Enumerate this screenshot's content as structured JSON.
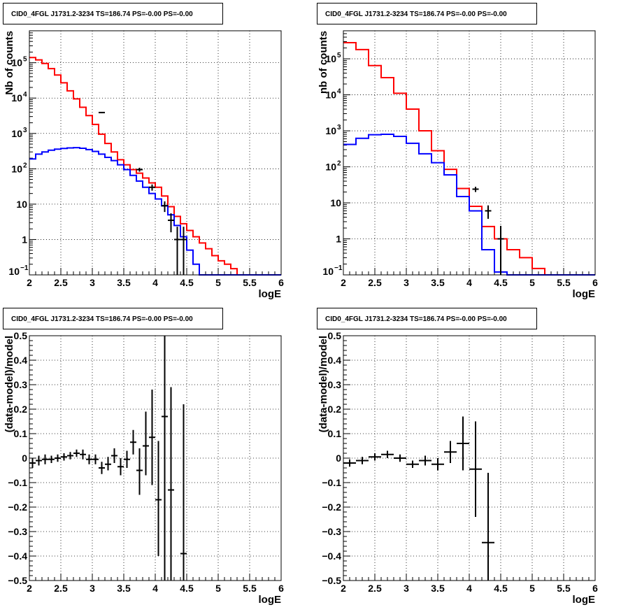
{
  "chart_data": [
    {
      "id": "top-left",
      "type": "step-histogram",
      "title": "CID0_4FGL J1731.2-3234 TS=186.74 PS=-0.00 PS=-0.00",
      "xlabel": "logE",
      "ylabel": "Nb of counts",
      "xlim": [
        2,
        6
      ],
      "ylim": [
        0.1,
        800000
      ],
      "yscale": "log",
      "grid": true,
      "x_ticks": [
        "2",
        "2.5",
        "3",
        "3.5",
        "4",
        "4.5",
        "5",
        "5.5",
        "6"
      ],
      "y_ticks": [
        {
          "value": 0.1,
          "label": "10",
          "exp": "−1"
        },
        {
          "value": 1,
          "label": "1",
          "exp": ""
        },
        {
          "value": 10,
          "label": "10",
          "exp": ""
        },
        {
          "value": 100,
          "label": "10",
          "exp": "2"
        },
        {
          "value": 1000,
          "label": "10",
          "exp": "3"
        },
        {
          "value": 10000,
          "label": "10",
          "exp": "4"
        },
        {
          "value": 100000,
          "label": "10",
          "exp": "5"
        }
      ],
      "bin_edges": [
        2.0,
        2.1,
        2.2,
        2.3,
        2.4,
        2.5,
        2.6,
        2.7,
        2.8,
        2.9,
        3.0,
        3.1,
        3.2,
        3.3,
        3.4,
        3.5,
        3.6,
        3.7,
        3.8,
        3.9,
        4.0,
        4.1,
        4.2,
        4.3,
        4.4,
        4.5,
        4.6,
        4.7,
        4.8,
        4.9,
        5.0,
        5.1,
        5.2,
        5.3,
        5.4,
        5.5,
        5.6,
        5.7,
        5.8,
        5.9,
        6.0
      ],
      "series": [
        {
          "color": "#ff0000",
          "values": [
            140000,
            120000,
            95000,
            68000,
            45000,
            27000,
            16000,
            9500,
            5500,
            3200,
            1800,
            950,
            520,
            300,
            180,
            130,
            95,
            75,
            55,
            40,
            30,
            17,
            8.5,
            4.5,
            2.8,
            1.8,
            1.2,
            0.8,
            0.55,
            0.35,
            0.25,
            0.2,
            0.15,
            0.1,
            0.1,
            0.1,
            0.1,
            0.1,
            0.1,
            0.1
          ]
        },
        {
          "color": "#0000ff",
          "values": [
            190,
            260,
            300,
            335,
            360,
            375,
            390,
            395,
            380,
            350,
            310,
            260,
            210,
            170,
            130,
            95,
            65,
            45,
            30,
            20,
            14,
            9,
            5,
            2.5,
            1.2,
            0.5,
            0.2,
            0.1,
            0.1,
            0.1,
            0.1,
            0.1,
            0.1,
            0.1,
            0.1,
            0.1,
            0.1,
            0.1,
            0.1,
            0.1
          ]
        }
      ],
      "points": [
        {
          "x": 3.15,
          "y": 3900,
          "ylo": 3750,
          "yhi": 4050
        },
        {
          "x": 3.75,
          "y": 95,
          "ylo": 83,
          "yhi": 107
        },
        {
          "x": 3.95,
          "y": 30,
          "ylo": 24,
          "yhi": 36
        },
        {
          "x": 4.15,
          "y": 9,
          "ylo": 6,
          "yhi": 12
        },
        {
          "x": 4.25,
          "y": 3.5,
          "ylo": 1.6,
          "yhi": 5.5
        },
        {
          "x": 4.35,
          "y": 1,
          "ylo": 0.1,
          "yhi": 2.3
        },
        {
          "x": 4.45,
          "y": 1,
          "ylo": 0.1,
          "yhi": 2.3
        }
      ]
    },
    {
      "id": "top-right",
      "type": "step-histogram",
      "title": "CID0_4FGL J1731.2-3234 TS=186.74 PS=-0.00 PS=-0.00",
      "xlabel": "logE",
      "ylabel": "nb of counts",
      "xlim": [
        2,
        6
      ],
      "ylim": [
        0.1,
        600000
      ],
      "yscale": "log",
      "grid": true,
      "x_ticks": [
        "2",
        "2.5",
        "3",
        "3.5",
        "4",
        "4.5",
        "5",
        "5.5",
        "6"
      ],
      "y_ticks": [
        {
          "value": 0.1,
          "label": "10",
          "exp": "−1"
        },
        {
          "value": 1,
          "label": "1",
          "exp": ""
        },
        {
          "value": 10,
          "label": "10",
          "exp": ""
        },
        {
          "value": 100,
          "label": "10",
          "exp": "2"
        },
        {
          "value": 1000,
          "label": "10",
          "exp": "3"
        },
        {
          "value": 10000,
          "label": "10",
          "exp": "4"
        },
        {
          "value": 100000,
          "label": "10",
          "exp": "5"
        }
      ],
      "bin_edges": [
        2.0,
        2.2,
        2.4,
        2.6,
        2.8,
        3.0,
        3.2,
        3.4,
        3.6,
        3.8,
        4.0,
        4.2,
        4.4,
        4.6,
        4.8,
        5.0,
        5.2,
        5.4,
        5.6,
        5.8,
        6.0
      ],
      "series": [
        {
          "color": "#ff0000",
          "values": [
            280000,
            180000,
            65000,
            30000,
            11000,
            4000,
            1000,
            280,
            85,
            25,
            8,
            2.2,
            1,
            0.5,
            0.3,
            0.15,
            0.1,
            0.1,
            0.1,
            0.1
          ]
        },
        {
          "color": "#0000ff",
          "values": [
            420,
            620,
            780,
            800,
            700,
            450,
            230,
            130,
            60,
            15,
            6,
            0.5,
            0.12,
            0.1,
            0.1,
            0.1,
            0.1,
            0.1,
            0.1,
            0.1
          ]
        }
      ],
      "points": [
        {
          "x": 4.1,
          "y": 24,
          "ylo": 20,
          "yhi": 28
        },
        {
          "x": 4.3,
          "y": 6,
          "ylo": 3.6,
          "yhi": 8.5
        },
        {
          "x": 4.5,
          "y": 1,
          "ylo": 0.1,
          "yhi": 2.3
        }
      ]
    },
    {
      "id": "bottom-left",
      "type": "errorbar",
      "title": "CID0_4FGL J1731.2-3234 TS=186.74 PS=-0.00 PS=-0.00",
      "xlabel": "logE",
      "ylabel": "(data-model)/model",
      "xlim": [
        2,
        6
      ],
      "ylim": [
        -0.5,
        0.5
      ],
      "yscale": "linear",
      "grid": true,
      "x_ticks": [
        "2",
        "2.5",
        "3",
        "3.5",
        "4",
        "4.5",
        "5",
        "5.5",
        "6"
      ],
      "y_ticks": [
        {
          "value": -0.5,
          "label": "−0.5"
        },
        {
          "value": -0.4,
          "label": "−0.4"
        },
        {
          "value": -0.3,
          "label": "−0.3"
        },
        {
          "value": -0.2,
          "label": "−0.2"
        },
        {
          "value": -0.1,
          "label": "−0.1"
        },
        {
          "value": 0,
          "label": "0"
        },
        {
          "value": 0.1,
          "label": "0.1"
        },
        {
          "value": 0.2,
          "label": "0.2"
        },
        {
          "value": 0.3,
          "label": "0.3"
        },
        {
          "value": 0.4,
          "label": "0.4"
        },
        {
          "value": 0.5,
          "label": "0.5"
        }
      ],
      "points": [
        {
          "x": 2.05,
          "y": -0.02,
          "ylo": -0.04,
          "yhi": 0.0,
          "xw": 0.05
        },
        {
          "x": 2.15,
          "y": -0.01,
          "ylo": -0.03,
          "yhi": 0.01,
          "xw": 0.05
        },
        {
          "x": 2.25,
          "y": -0.005,
          "ylo": -0.025,
          "yhi": 0.015,
          "xw": 0.05
        },
        {
          "x": 2.35,
          "y": -0.005,
          "ylo": -0.02,
          "yhi": 0.01,
          "xw": 0.05
        },
        {
          "x": 2.45,
          "y": 0.0,
          "ylo": -0.015,
          "yhi": 0.015,
          "xw": 0.05
        },
        {
          "x": 2.55,
          "y": 0.005,
          "ylo": -0.01,
          "yhi": 0.02,
          "xw": 0.05
        },
        {
          "x": 2.65,
          "y": 0.01,
          "ylo": -0.005,
          "yhi": 0.025,
          "xw": 0.05
        },
        {
          "x": 2.75,
          "y": 0.02,
          "ylo": 0.005,
          "yhi": 0.035,
          "xw": 0.05
        },
        {
          "x": 2.85,
          "y": 0.015,
          "ylo": -0.005,
          "yhi": 0.035,
          "xw": 0.05
        },
        {
          "x": 2.95,
          "y": -0.005,
          "ylo": -0.025,
          "yhi": 0.015,
          "xw": 0.05
        },
        {
          "x": 3.05,
          "y": -0.005,
          "ylo": -0.025,
          "yhi": 0.015,
          "xw": 0.05
        },
        {
          "x": 3.15,
          "y": -0.04,
          "ylo": -0.065,
          "yhi": -0.015,
          "xw": 0.05
        },
        {
          "x": 3.25,
          "y": -0.025,
          "ylo": -0.05,
          "yhi": 0.005,
          "xw": 0.05
        },
        {
          "x": 3.35,
          "y": 0.01,
          "ylo": -0.02,
          "yhi": 0.04,
          "xw": 0.05
        },
        {
          "x": 3.45,
          "y": -0.035,
          "ylo": -0.07,
          "yhi": 0.0,
          "xw": 0.05
        },
        {
          "x": 3.55,
          "y": -0.005,
          "ylo": -0.04,
          "yhi": 0.03,
          "xw": 0.05
        },
        {
          "x": 3.65,
          "y": 0.065,
          "ylo": 0.015,
          "yhi": 0.115,
          "xw": 0.05
        },
        {
          "x": 3.75,
          "y": -0.05,
          "ylo": -0.15,
          "yhi": 0.04,
          "xw": 0.05
        },
        {
          "x": 3.85,
          "y": 0.05,
          "ylo": -0.07,
          "yhi": 0.19,
          "xw": 0.05
        },
        {
          "x": 3.95,
          "y": 0.085,
          "ylo": -0.11,
          "yhi": 0.28,
          "xw": 0.05
        },
        {
          "x": 4.05,
          "y": -0.17,
          "ylo": -0.4,
          "yhi": 0.07,
          "xw": 0.05
        },
        {
          "x": 4.15,
          "y": 0.17,
          "ylo": -0.5,
          "yhi": 0.5,
          "xw": 0.05
        },
        {
          "x": 4.25,
          "y": -0.13,
          "ylo": -0.5,
          "yhi": 0.29,
          "xw": 0.05
        },
        {
          "x": 4.45,
          "y": -0.39,
          "ylo": -0.5,
          "yhi": 0.22,
          "xw": 0.05
        }
      ]
    },
    {
      "id": "bottom-right",
      "type": "errorbar",
      "title": "CID0_4FGL J1731.2-3234 TS=186.74 PS=-0.00 PS=-0.00",
      "xlabel": "logE",
      "ylabel": "(data-model)/model",
      "xlim": [
        2,
        6
      ],
      "ylim": [
        -0.5,
        0.5
      ],
      "yscale": "linear",
      "grid": true,
      "x_ticks": [
        "2",
        "2.5",
        "3",
        "3.5",
        "4",
        "4.5",
        "5",
        "5.5",
        "6"
      ],
      "y_ticks": [
        {
          "value": -0.5,
          "label": "−0.5"
        },
        {
          "value": -0.4,
          "label": "−0.4"
        },
        {
          "value": -0.3,
          "label": "−0.3"
        },
        {
          "value": -0.2,
          "label": "−0.2"
        },
        {
          "value": -0.1,
          "label": "−0.1"
        },
        {
          "value": 0,
          "label": "0"
        },
        {
          "value": 0.1,
          "label": "0.1"
        },
        {
          "value": 0.2,
          "label": "0.2"
        },
        {
          "value": 0.3,
          "label": "0.3"
        },
        {
          "value": 0.4,
          "label": "0.4"
        },
        {
          "value": 0.5,
          "label": "0.5"
        }
      ],
      "points": [
        {
          "x": 2.1,
          "y": -0.02,
          "ylo": -0.035,
          "yhi": -0.005,
          "xw": 0.1
        },
        {
          "x": 2.3,
          "y": -0.01,
          "ylo": -0.025,
          "yhi": 0.005,
          "xw": 0.1
        },
        {
          "x": 2.5,
          "y": 0.005,
          "ylo": -0.01,
          "yhi": 0.02,
          "xw": 0.1
        },
        {
          "x": 2.7,
          "y": 0.015,
          "ylo": 0.0,
          "yhi": 0.03,
          "xw": 0.1
        },
        {
          "x": 2.9,
          "y": 0.0,
          "ylo": -0.015,
          "yhi": 0.015,
          "xw": 0.1
        },
        {
          "x": 3.1,
          "y": -0.025,
          "ylo": -0.04,
          "yhi": -0.01,
          "xw": 0.1
        },
        {
          "x": 3.3,
          "y": -0.01,
          "ylo": -0.03,
          "yhi": 0.01,
          "xw": 0.1
        },
        {
          "x": 3.5,
          "y": -0.025,
          "ylo": -0.05,
          "yhi": 0.0,
          "xw": 0.1
        },
        {
          "x": 3.7,
          "y": 0.025,
          "ylo": -0.02,
          "yhi": 0.07,
          "xw": 0.1
        },
        {
          "x": 3.9,
          "y": 0.06,
          "ylo": -0.05,
          "yhi": 0.17,
          "xw": 0.1
        },
        {
          "x": 4.1,
          "y": -0.045,
          "ylo": -0.24,
          "yhi": 0.15,
          "xw": 0.1
        },
        {
          "x": 4.3,
          "y": -0.345,
          "ylo": -0.5,
          "yhi": -0.06,
          "xw": 0.1
        }
      ]
    }
  ]
}
